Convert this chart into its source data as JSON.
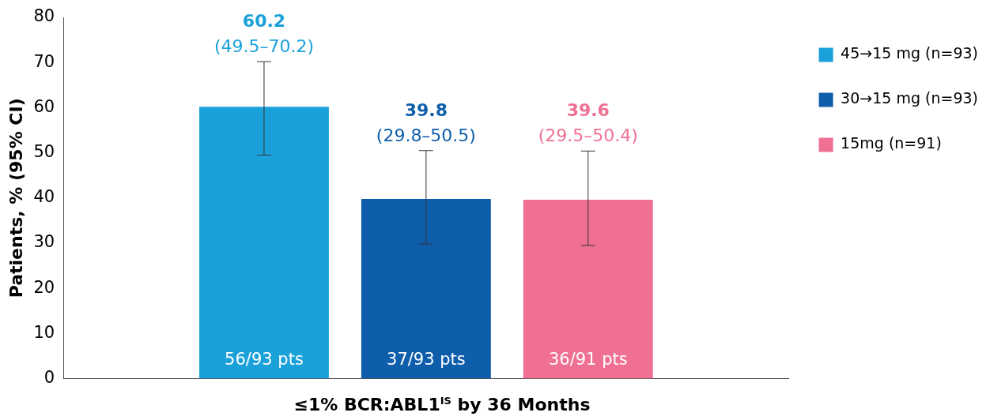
{
  "chart_data": {
    "type": "bar",
    "categories": [
      null
    ],
    "series": [
      {
        "name": "45→15 mg (n=93)",
        "color": "#1ba1d9",
        "values": [
          60.2
        ],
        "errors": [
          [
            49.5,
            70.2
          ]
        ],
        "value_labels": [
          "60.2\n(49.5–70.2)"
        ]
      },
      {
        "name": "30→15 mg (n=93)",
        "color": "#0e5eab",
        "values": [
          39.8
        ],
        "errors": [
          [
            29.8,
            50.5
          ]
        ],
        "value_labels": [
          "39.8\n(29.8–50.5)"
        ]
      },
      {
        "name": "15mg (n=91)",
        "color": "#f07093",
        "values": [
          39.6
        ],
        "errors": [
          [
            29.5,
            50.4
          ]
        ],
        "value_labels": [
          "39.6\n(29.5–50.4)"
        ]
      }
    ],
    "xlabel": "≤1% BCR:ABL1$^{IS}$ by 36 Months",
    "ylabel": "Patients, % (95% CI)",
    "ylim": [
      0,
      80
    ],
    "yticks": [
      0,
      10,
      20,
      30,
      40,
      50,
      60,
      70,
      80
    ],
    "annotations": [
      "56/93 pts",
      "37/93 pts",
      "36/91 pts"
    ],
    "grid": false,
    "legend": "right"
  }
}
